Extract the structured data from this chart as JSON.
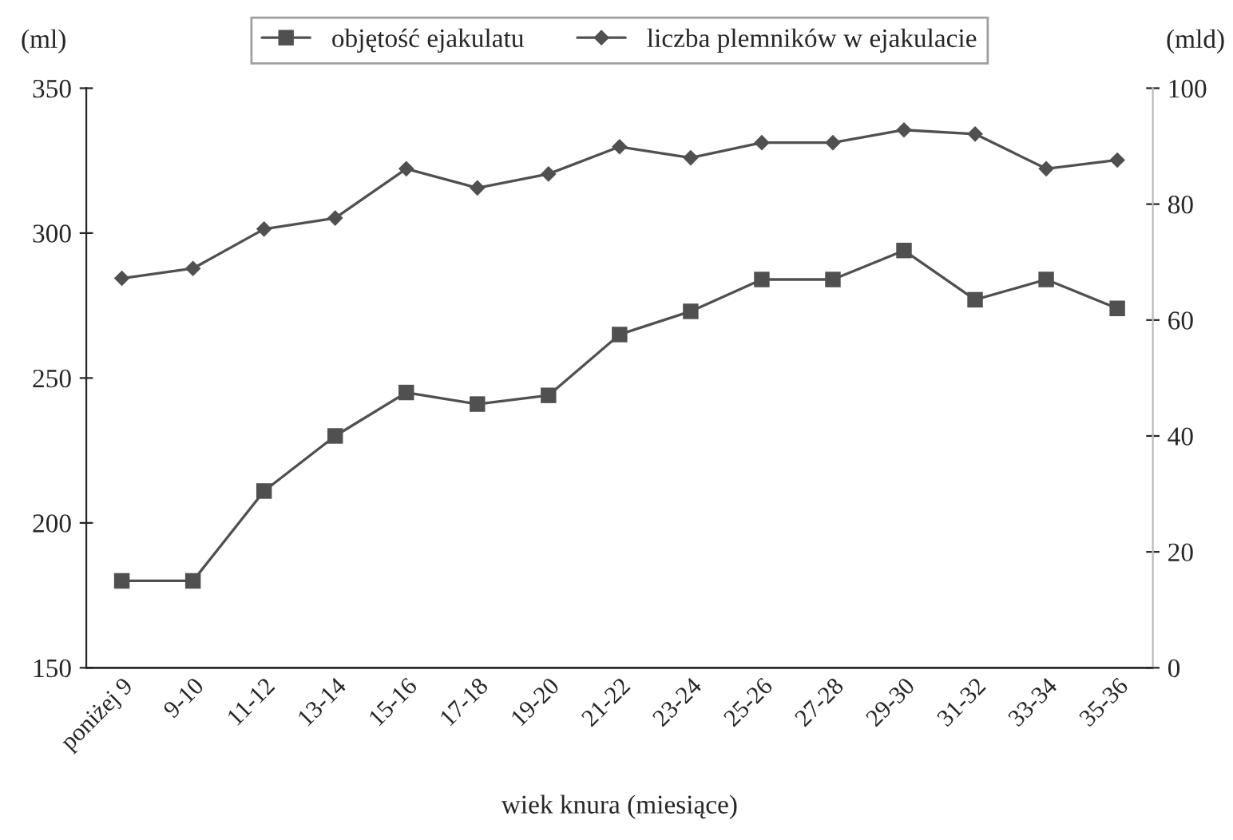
{
  "chart_data": {
    "type": "line",
    "xlabel": "wiek knura (miesiące)",
    "ylabel": "(ml)",
    "y2label": "(mld)",
    "categories": [
      "poniżej 9",
      "9-10",
      "11-12",
      "13-14",
      "15-16",
      "17-18",
      "19-20",
      "21-22",
      "23-24",
      "25-26",
      "27-28",
      "29-30",
      "31-32",
      "33-34",
      "35-36"
    ],
    "series": [
      {
        "name": "objętość ejakulatu",
        "color": "#505050",
        "marker": "square",
        "values": [
          180,
          180,
          211,
          230,
          245,
          241,
          244,
          265,
          273,
          284,
          284,
          294,
          277,
          284,
          274
        ]
      },
      {
        "name": "liczba plemników w ejakulacie",
        "color": "#505050",
        "marker": "diamond",
        "axis": "y2",
        "values": [
          67.2,
          68.9,
          75.7,
          77.6,
          86.1,
          82.8,
          85.2,
          89.9,
          88,
          90.6,
          90.6,
          92.8,
          92.1,
          86.1,
          87.6
        ]
      }
    ],
    "ylim": [
      150,
      350
    ],
    "yticks": [
      150,
      200,
      250,
      300,
      350
    ],
    "y2lim": [
      0,
      100
    ],
    "y2ticks": [
      0,
      20,
      40,
      60,
      80,
      100
    ],
    "legend": "top",
    "grid": false
  }
}
